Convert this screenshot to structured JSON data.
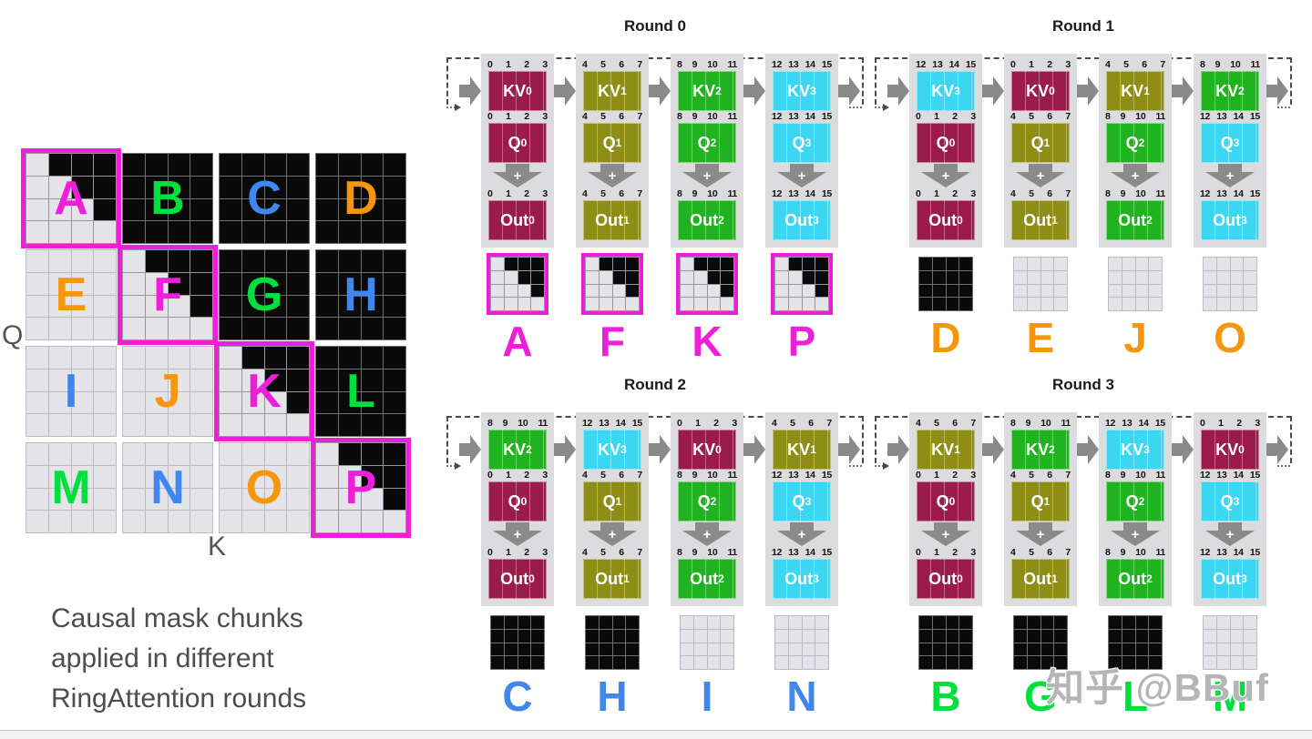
{
  "colors": {
    "magenta": "#ee1fd8",
    "orange": "#f5960c",
    "blue": "#3f86ed",
    "green": "#00e03c",
    "block": {
      "maroon": "#9b1c4b",
      "olive": "#8e8e14",
      "green": "#1fb41f",
      "cyan": "#3bd7f2"
    },
    "arrow": "#8a8a8a",
    "panel_bg": "#dcdcdf",
    "dashed_line": "#4a4a4a",
    "mask_cell_black": "#0a0a0a",
    "mask_cell_light": "#e4e4e9",
    "chunk_outline": "#ee1fd8"
  },
  "left_matrix": {
    "q_label": "Q",
    "k_label": "K",
    "chunks": [
      {
        "letter": "A",
        "letter_color": "magenta",
        "type": "causal",
        "outlined": true
      },
      {
        "letter": "B",
        "letter_color": "green",
        "type": "full",
        "outlined": false
      },
      {
        "letter": "C",
        "letter_color": "blue",
        "type": "full",
        "outlined": false
      },
      {
        "letter": "D",
        "letter_color": "orange",
        "type": "full",
        "outlined": false
      },
      {
        "letter": "E",
        "letter_color": "orange",
        "type": "empty",
        "outlined": false
      },
      {
        "letter": "F",
        "letter_color": "magenta",
        "type": "causal",
        "outlined": true
      },
      {
        "letter": "G",
        "letter_color": "green",
        "type": "full",
        "outlined": false
      },
      {
        "letter": "H",
        "letter_color": "blue",
        "type": "full",
        "outlined": false
      },
      {
        "letter": "I",
        "letter_color": "blue",
        "type": "empty",
        "outlined": false
      },
      {
        "letter": "J",
        "letter_color": "orange",
        "type": "empty",
        "outlined": false
      },
      {
        "letter": "K",
        "letter_color": "magenta",
        "type": "causal",
        "outlined": true
      },
      {
        "letter": "L",
        "letter_color": "green",
        "type": "full",
        "outlined": false
      },
      {
        "letter": "M",
        "letter_color": "green",
        "type": "empty",
        "outlined": false
      },
      {
        "letter": "N",
        "letter_color": "blue",
        "type": "empty",
        "outlined": false
      },
      {
        "letter": "O",
        "letter_color": "orange",
        "type": "empty",
        "outlined": false
      },
      {
        "letter": "P",
        "letter_color": "magenta",
        "type": "causal",
        "outlined": true
      }
    ]
  },
  "caption_lines": [
    "Causal mask chunks",
    "applied in different",
    "RingAttention rounds"
  ],
  "block_labels": {
    "kv": "KV",
    "q": "Q",
    "out": "Out"
  },
  "plus_label": "+",
  "rounds": [
    {
      "title": "Round 0",
      "columns": [
        {
          "kv": {
            "indices": [
              "0",
              "1",
              "2",
              "3"
            ],
            "sub": "0",
            "color": "maroon"
          },
          "q": {
            "indices": [
              "0",
              "1",
              "2",
              "3"
            ],
            "sub": "0",
            "color": "maroon"
          },
          "out": {
            "indices": [
              "0",
              "1",
              "2",
              "3"
            ],
            "sub": "0",
            "color": "maroon"
          },
          "chunk": {
            "letter": "A",
            "letter_color": "magenta",
            "type": "causal",
            "outlined": true
          }
        },
        {
          "kv": {
            "indices": [
              "4",
              "5",
              "6",
              "7"
            ],
            "sub": "1",
            "color": "olive"
          },
          "q": {
            "indices": [
              "4",
              "5",
              "6",
              "7"
            ],
            "sub": "1",
            "color": "olive"
          },
          "out": {
            "indices": [
              "4",
              "5",
              "6",
              "7"
            ],
            "sub": "1",
            "color": "olive"
          },
          "chunk": {
            "letter": "F",
            "letter_color": "magenta",
            "type": "causal",
            "outlined": true
          }
        },
        {
          "kv": {
            "indices": [
              "8",
              "9",
              "10",
              "11"
            ],
            "sub": "2",
            "color": "green"
          },
          "q": {
            "indices": [
              "8",
              "9",
              "10",
              "11"
            ],
            "sub": "2",
            "color": "green"
          },
          "out": {
            "indices": [
              "8",
              "9",
              "10",
              "11"
            ],
            "sub": "2",
            "color": "green"
          },
          "chunk": {
            "letter": "K",
            "letter_color": "magenta",
            "type": "causal",
            "outlined": true
          }
        },
        {
          "kv": {
            "indices": [
              "12",
              "13",
              "14",
              "15"
            ],
            "sub": "3",
            "color": "cyan"
          },
          "q": {
            "indices": [
              "12",
              "13",
              "14",
              "15"
            ],
            "sub": "3",
            "color": "cyan"
          },
          "out": {
            "indices": [
              "12",
              "13",
              "14",
              "15"
            ],
            "sub": "3",
            "color": "cyan"
          },
          "chunk": {
            "letter": "P",
            "letter_color": "magenta",
            "type": "causal",
            "outlined": true
          }
        }
      ]
    },
    {
      "title": "Round 1",
      "columns": [
        {
          "kv": {
            "indices": [
              "12",
              "13",
              "14",
              "15"
            ],
            "sub": "3",
            "color": "cyan"
          },
          "q": {
            "indices": [
              "0",
              "1",
              "2",
              "3"
            ],
            "sub": "0",
            "color": "maroon"
          },
          "out": {
            "indices": [
              "0",
              "1",
              "2",
              "3"
            ],
            "sub": "0",
            "color": "maroon"
          },
          "chunk": {
            "letter": "D",
            "letter_color": "orange",
            "type": "full",
            "outlined": false
          }
        },
        {
          "kv": {
            "indices": [
              "0",
              "1",
              "2",
              "3"
            ],
            "sub": "0",
            "color": "maroon"
          },
          "q": {
            "indices": [
              "4",
              "5",
              "6",
              "7"
            ],
            "sub": "1",
            "color": "olive"
          },
          "out": {
            "indices": [
              "4",
              "5",
              "6",
              "7"
            ],
            "sub": "1",
            "color": "olive"
          },
          "chunk": {
            "letter": "E",
            "letter_color": "orange",
            "type": "empty",
            "outlined": false
          }
        },
        {
          "kv": {
            "indices": [
              "4",
              "5",
              "6",
              "7"
            ],
            "sub": "1",
            "color": "olive"
          },
          "q": {
            "indices": [
              "8",
              "9",
              "10",
              "11"
            ],
            "sub": "2",
            "color": "green"
          },
          "out": {
            "indices": [
              "8",
              "9",
              "10",
              "11"
            ],
            "sub": "2",
            "color": "green"
          },
          "chunk": {
            "letter": "J",
            "letter_color": "orange",
            "type": "empty",
            "outlined": false
          }
        },
        {
          "kv": {
            "indices": [
              "8",
              "9",
              "10",
              "11"
            ],
            "sub": "2",
            "color": "green"
          },
          "q": {
            "indices": [
              "12",
              "13",
              "14",
              "15"
            ],
            "sub": "3",
            "color": "cyan"
          },
          "out": {
            "indices": [
              "12",
              "13",
              "14",
              "15"
            ],
            "sub": "3",
            "color": "cyan"
          },
          "chunk": {
            "letter": "O",
            "letter_color": "orange",
            "type": "empty",
            "outlined": false
          }
        }
      ]
    },
    {
      "title": "Round 2",
      "columns": [
        {
          "kv": {
            "indices": [
              "8",
              "9",
              "10",
              "11"
            ],
            "sub": "2",
            "color": "green"
          },
          "q": {
            "indices": [
              "0",
              "1",
              "2",
              "3"
            ],
            "sub": "0",
            "color": "maroon"
          },
          "out": {
            "indices": [
              "0",
              "1",
              "2",
              "3"
            ],
            "sub": "0",
            "color": "maroon"
          },
          "chunk": {
            "letter": "C",
            "letter_color": "blue",
            "type": "full",
            "outlined": false
          }
        },
        {
          "kv": {
            "indices": [
              "12",
              "13",
              "14",
              "15"
            ],
            "sub": "3",
            "color": "cyan"
          },
          "q": {
            "indices": [
              "4",
              "5",
              "6",
              "7"
            ],
            "sub": "1",
            "color": "olive"
          },
          "out": {
            "indices": [
              "4",
              "5",
              "6",
              "7"
            ],
            "sub": "1",
            "color": "olive"
          },
          "chunk": {
            "letter": "H",
            "letter_color": "blue",
            "type": "full",
            "outlined": false
          }
        },
        {
          "kv": {
            "indices": [
              "0",
              "1",
              "2",
              "3"
            ],
            "sub": "0",
            "color": "maroon"
          },
          "q": {
            "indices": [
              "8",
              "9",
              "10",
              "11"
            ],
            "sub": "2",
            "color": "green"
          },
          "out": {
            "indices": [
              "8",
              "9",
              "10",
              "11"
            ],
            "sub": "2",
            "color": "green"
          },
          "chunk": {
            "letter": "I",
            "letter_color": "blue",
            "type": "empty",
            "outlined": false
          }
        },
        {
          "kv": {
            "indices": [
              "4",
              "5",
              "6",
              "7"
            ],
            "sub": "1",
            "color": "olive"
          },
          "q": {
            "indices": [
              "12",
              "13",
              "14",
              "15"
            ],
            "sub": "3",
            "color": "cyan"
          },
          "out": {
            "indices": [
              "12",
              "13",
              "14",
              "15"
            ],
            "sub": "3",
            "color": "cyan"
          },
          "chunk": {
            "letter": "N",
            "letter_color": "blue",
            "type": "empty",
            "outlined": false
          }
        }
      ]
    },
    {
      "title": "Round 3",
      "columns": [
        {
          "kv": {
            "indices": [
              "4",
              "5",
              "6",
              "7"
            ],
            "sub": "1",
            "color": "olive"
          },
          "q": {
            "indices": [
              "0",
              "1",
              "2",
              "3"
            ],
            "sub": "0",
            "color": "maroon"
          },
          "out": {
            "indices": [
              "0",
              "1",
              "2",
              "3"
            ],
            "sub": "0",
            "color": "maroon"
          },
          "chunk": {
            "letter": "B",
            "letter_color": "green",
            "type": "full",
            "outlined": false
          }
        },
        {
          "kv": {
            "indices": [
              "8",
              "9",
              "10",
              "11"
            ],
            "sub": "2",
            "color": "green"
          },
          "q": {
            "indices": [
              "4",
              "5",
              "6",
              "7"
            ],
            "sub": "1",
            "color": "olive"
          },
          "out": {
            "indices": [
              "4",
              "5",
              "6",
              "7"
            ],
            "sub": "1",
            "color": "olive"
          },
          "chunk": {
            "letter": "G",
            "letter_color": "green",
            "type": "full",
            "outlined": false
          }
        },
        {
          "kv": {
            "indices": [
              "12",
              "13",
              "14",
              "15"
            ],
            "sub": "3",
            "color": "cyan"
          },
          "q": {
            "indices": [
              "8",
              "9",
              "10",
              "11"
            ],
            "sub": "2",
            "color": "green"
          },
          "out": {
            "indices": [
              "8",
              "9",
              "10",
              "11"
            ],
            "sub": "2",
            "color": "green"
          },
          "chunk": {
            "letter": "L",
            "letter_color": "green",
            "type": "full",
            "outlined": false
          }
        },
        {
          "kv": {
            "indices": [
              "0",
              "1",
              "2",
              "3"
            ],
            "sub": "0",
            "color": "maroon"
          },
          "q": {
            "indices": [
              "12",
              "13",
              "14",
              "15"
            ],
            "sub": "3",
            "color": "cyan"
          },
          "out": {
            "indices": [
              "12",
              "13",
              "14",
              "15"
            ],
            "sub": "3",
            "color": "cyan"
          },
          "chunk": {
            "letter": "M",
            "letter_color": "green",
            "type": "empty",
            "outlined": false
          }
        }
      ]
    }
  ],
  "watermark": {
    "text": "知乎 @BBuf"
  }
}
